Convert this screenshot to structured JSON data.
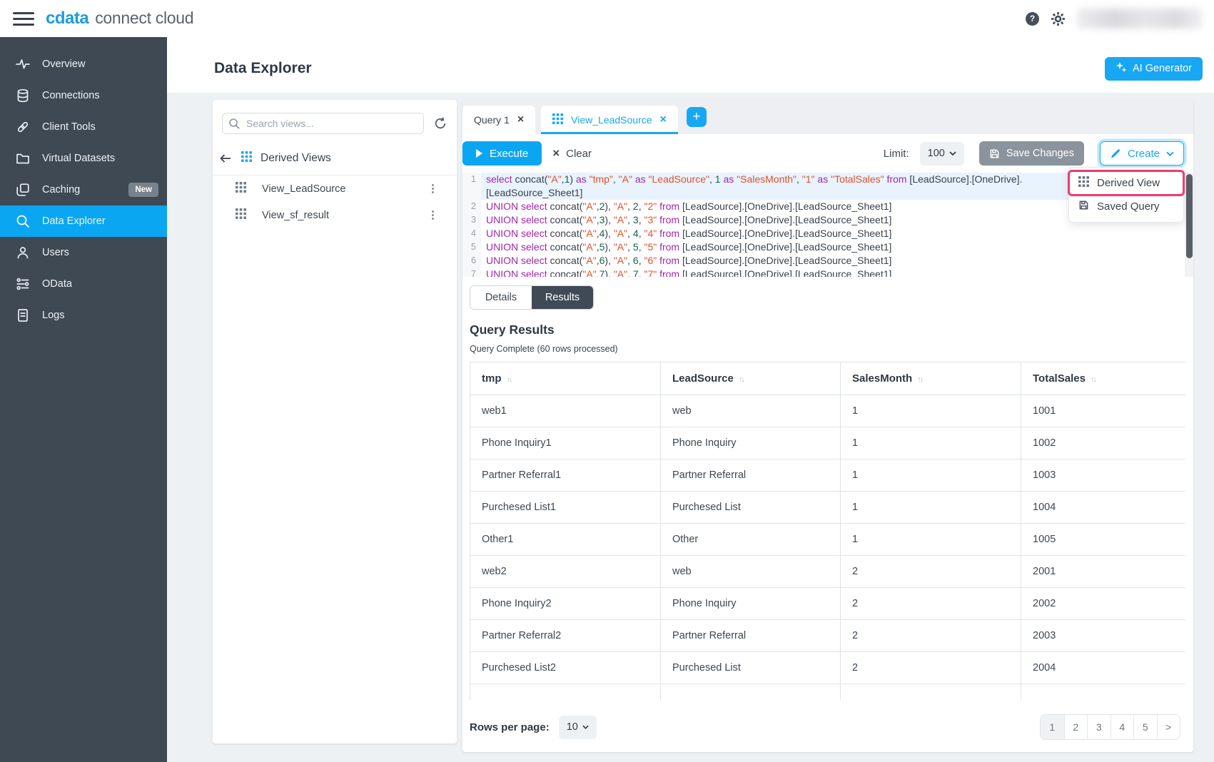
{
  "topbar": {
    "brand_primary": "cdata",
    "brand_secondary": "connect cloud"
  },
  "sidebar": {
    "items": [
      {
        "label": "Overview",
        "icon": "activity-icon"
      },
      {
        "label": "Connections",
        "icon": "database-icon"
      },
      {
        "label": "Client Tools",
        "icon": "link-icon"
      },
      {
        "label": "Virtual Datasets",
        "icon": "folder-icon"
      },
      {
        "label": "Caching",
        "icon": "copy-icon",
        "badge": "New"
      },
      {
        "label": "Data Explorer",
        "icon": "search-icon",
        "active": true
      },
      {
        "label": "Users",
        "icon": "user-icon"
      },
      {
        "label": "OData",
        "icon": "odata-icon"
      },
      {
        "label": "Logs",
        "icon": "document-icon"
      }
    ]
  },
  "page": {
    "title": "Data Explorer"
  },
  "ai_generator": {
    "label": "AI Generator"
  },
  "views_panel": {
    "search_placeholder": "Search views...",
    "breadcrumb": "Derived Views",
    "items": [
      {
        "label": "View_LeadSource"
      },
      {
        "label": "View_sf_result"
      }
    ]
  },
  "tabs": {
    "query_tab": "Query 1",
    "view_tab": "View_LeadSource"
  },
  "toolbar": {
    "execute_label": "Execute",
    "clear_label": "Clear",
    "limit_label": "Limit:",
    "limit_value": "100",
    "save_label": "Save Changes",
    "create_label": "Create"
  },
  "create_menu": {
    "items": [
      {
        "label": "Derived View",
        "icon": "grid-icon",
        "highlighted": true
      },
      {
        "label": "Saved Query",
        "icon": "save-icon",
        "highlighted": false
      }
    ]
  },
  "editor": {
    "lines": [
      {
        "num": "1",
        "active": true,
        "text": "select concat(\"A\",1) as \"tmp\", \"A\" as \"LeadSource\", 1 as \"SalesMonth\", \"1\" as \"TotalSales\" from [LeadSource].[OneDrive].",
        "wrap": "[LeadSource_Sheet1]"
      },
      {
        "num": "2",
        "text": "UNION select concat(\"A\",2), \"A\", 2, \"2\" from [LeadSource].[OneDrive].[LeadSource_Sheet1]"
      },
      {
        "num": "3",
        "text": "UNION select concat(\"A\",3), \"A\", 3, \"3\" from [LeadSource].[OneDrive].[LeadSource_Sheet1]"
      },
      {
        "num": "4",
        "text": "UNION select concat(\"A\",4), \"A\", 4, \"4\" from [LeadSource].[OneDrive].[LeadSource_Sheet1]"
      },
      {
        "num": "5",
        "text": "UNION select concat(\"A\",5), \"A\", 5, \"5\" from [LeadSource].[OneDrive].[LeadSource_Sheet1]"
      },
      {
        "num": "6",
        "text": "UNION select concat(\"A\",6), \"A\", 6, \"6\" from [LeadSource].[OneDrive].[LeadSource_Sheet1]"
      },
      {
        "num": "7",
        "text": "UNION select concat(\"A\",7), \"A\", 7, \"7\" from [LeadSource].[OneDrive].[LeadSource_Sheet1]"
      }
    ]
  },
  "results": {
    "details_tab": "Details",
    "results_tab": "Results",
    "title": "Query Results",
    "status": "Query Complete (60 rows processed)",
    "columns": [
      "tmp",
      "LeadSource",
      "SalesMonth",
      "TotalSales"
    ],
    "rows": [
      [
        "web1",
        "web",
        "1",
        "1001"
      ],
      [
        "Phone Inquiry1",
        "Phone Inquiry",
        "1",
        "1002"
      ],
      [
        "Partner Referral1",
        "Partner Referral",
        "1",
        "1003"
      ],
      [
        "Purchesed List1",
        "Purchesed List",
        "1",
        "1004"
      ],
      [
        "Other1",
        "Other",
        "1",
        "1005"
      ],
      [
        "web2",
        "web",
        "2",
        "2001"
      ],
      [
        "Phone Inquiry2",
        "Phone Inquiry",
        "2",
        "2002"
      ],
      [
        "Partner Referral2",
        "Partner Referral",
        "2",
        "2003"
      ],
      [
        "Purchesed List2",
        "Purchesed List",
        "2",
        "2004"
      ]
    ]
  },
  "footer": {
    "rows_per_page_label": "Rows per page:",
    "rows_per_page_value": "10",
    "pages": [
      "1",
      "2",
      "3",
      "4",
      "5",
      ">"
    ],
    "active_page": "1"
  },
  "colors": {
    "accent_blue": "#18a7f3",
    "sidebar_dark": "#3e4954",
    "annotation_pink": "#f23a6b",
    "sql_keyword": "#a127a8",
    "sql_string": "#df512c",
    "sql_number": "#116644"
  }
}
